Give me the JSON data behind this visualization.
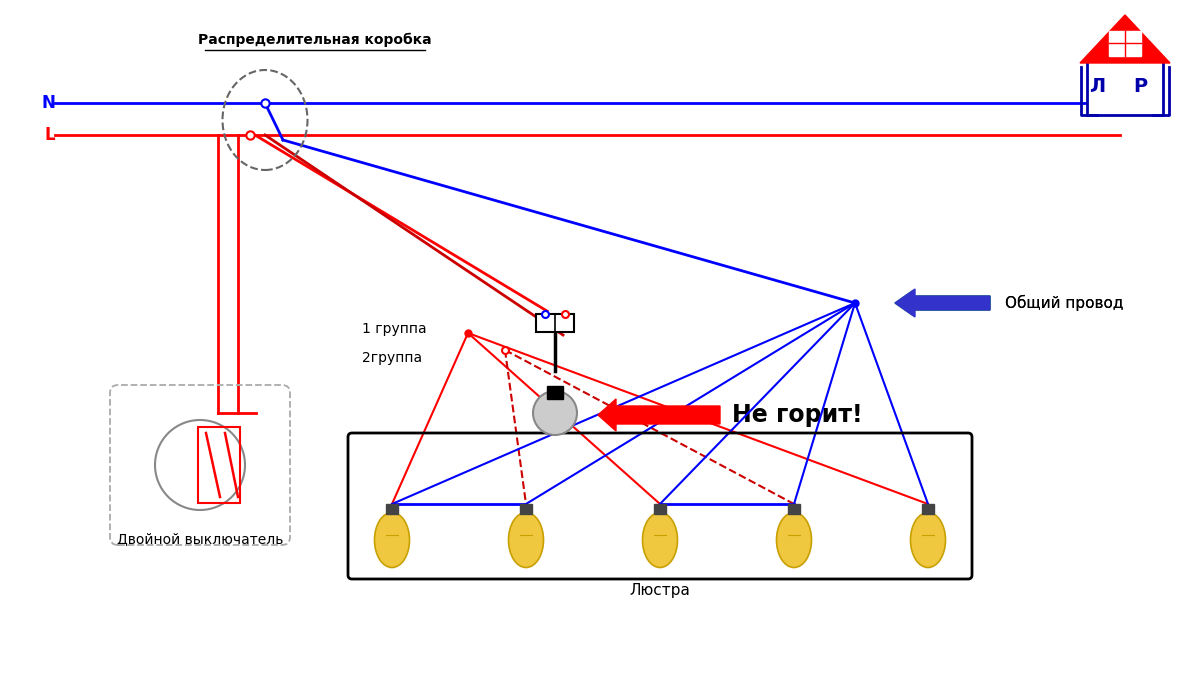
{
  "bg_color": "#ffffff",
  "title_box": "Распределительная коробка",
  "N_label": "N",
  "L_label": "L",
  "blue_color": "#0000ff",
  "red_color": "#ff0000",
  "dark_red_color": "#cc0000",
  "green_color": "#00aa00",
  "arrow_blue": "#3333cc",
  "gray_color": "#888888",
  "dark_gray": "#555555",
  "switch_label": "Двойной выключатель",
  "chandelier_label": "Люстра",
  "group1_label": "1 группа",
  "group2_label": "2группа",
  "label1": "Общий провод",
  "label2": "Общий провод",
  "ne_gorit": "Не горит!",
  "num_bulbs": 5
}
